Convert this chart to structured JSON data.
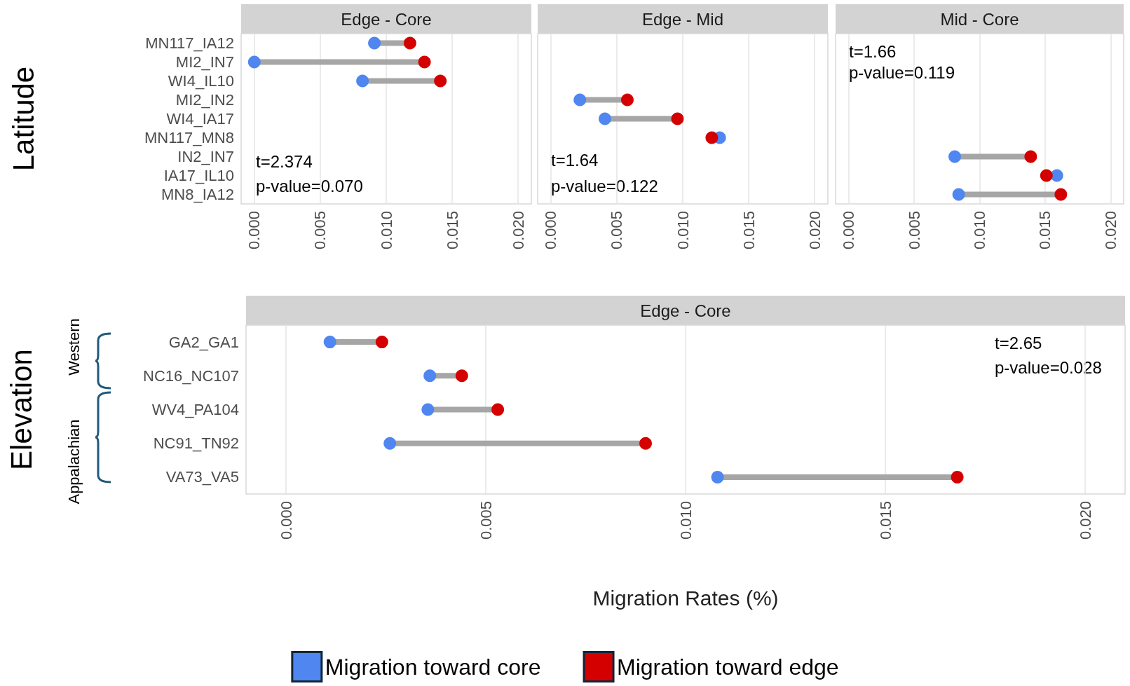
{
  "chart_data": [
    {
      "type": "scatter",
      "orientation": "horizontal",
      "title": "Edge - Core",
      "ylabel": "Latitude",
      "categories": [
        "MN117_IA12",
        "MI2_IN7",
        "WI4_IL10",
        "MI2_IN2",
        "WI4_IA17",
        "MN117_MN8",
        "IN2_IN7",
        "IA17_IL10",
        "MN8_IA12"
      ],
      "series": [
        {
          "color": "#4f86f0",
          "values": [
            0.0091,
            0.0,
            0.0082,
            null,
            null,
            null,
            null,
            null,
            null
          ]
        },
        {
          "color": "#d40000",
          "values": [
            0.0118,
            0.0129,
            0.0141,
            null,
            null,
            null,
            null,
            null,
            null
          ]
        }
      ],
      "xlim": [
        -0.001,
        0.021
      ],
      "xticks": [
        {
          "value": 0,
          "label": "0.000"
        },
        {
          "value": 0.005,
          "label": "0.005"
        },
        {
          "value": 0.01,
          "label": "0.010"
        },
        {
          "value": 0.015,
          "label": "0.015"
        },
        {
          "value": 0.02,
          "label": "0.020"
        }
      ],
      "grid": "x",
      "marker": "circle",
      "annotations": [
        "t=2.374",
        "p-value=0.070"
      ]
    },
    {
      "type": "scatter",
      "orientation": "horizontal",
      "title": "Edge - Mid",
      "categories": [
        null,
        null,
        null,
        null,
        null,
        null,
        null,
        null,
        null
      ],
      "series": [
        {
          "color": "#4f86f0",
          "values": [
            null,
            null,
            null,
            0.0022,
            0.0041,
            0.0128,
            null,
            null,
            null
          ]
        },
        {
          "color": "#d40000",
          "values": [
            null,
            null,
            null,
            0.0058,
            0.0096,
            0.0122,
            null,
            null,
            null
          ]
        }
      ],
      "xlim": [
        -0.001,
        0.021
      ],
      "xticks": [
        {
          "value": 0,
          "label": "0.000"
        },
        {
          "value": 0.005,
          "label": "0.005"
        },
        {
          "value": 0.01,
          "label": "0.010"
        },
        {
          "value": 0.015,
          "label": "0.015"
        },
        {
          "value": 0.02,
          "label": "0.020"
        }
      ],
      "grid": "x",
      "marker": "circle",
      "tick_labels": "x",
      "annotations": [
        "t=1.64",
        "p-value=0.122"
      ]
    },
    {
      "type": "scatter",
      "orientation": "horizontal",
      "title": "Mid - Core",
      "categories": [
        null,
        null,
        null,
        null,
        null,
        null,
        null,
        null,
        null
      ],
      "series": [
        {
          "color": "#4f86f0",
          "values": [
            null,
            null,
            null,
            null,
            null,
            null,
            0.0081,
            0.0159,
            0.0084
          ]
        },
        {
          "color": "#d40000",
          "values": [
            null,
            null,
            null,
            null,
            null,
            null,
            0.0139,
            0.0151,
            0.0162
          ]
        }
      ],
      "xlim": [
        -0.001,
        0.021
      ],
      "xticks": [
        {
          "value": 0,
          "label": "0.000"
        },
        {
          "value": 0.005,
          "label": "0.005"
        },
        {
          "value": 0.01,
          "label": "0.010"
        },
        {
          "value": 0.015,
          "label": "0.015"
        },
        {
          "value": 0.02,
          "label": "0.020"
        }
      ],
      "grid": "x",
      "marker": "circle",
      "tick_labels": "x",
      "annotations": [
        "t=1.66",
        "p-value=0.119"
      ]
    },
    {
      "type": "scatter",
      "orientation": "horizontal",
      "title": "Edge - Core",
      "ylabel": "Elevation",
      "xlabel": "Migration Rates (%)",
      "categories": [
        "GA2_GA1",
        "NC16_NC107",
        "WV4_PA104",
        "NC91_TN92",
        "VA73_VA5"
      ],
      "series": [
        {
          "name": "Migration toward core",
          "color": "#4f86f0",
          "values": [
            0.0011,
            0.0036,
            0.00355,
            0.0026,
            0.0108
          ]
        },
        {
          "name": "Migration toward edge",
          "color": "#d40000",
          "values": [
            0.0024,
            0.0044,
            0.0053,
            0.009,
            0.0168
          ]
        }
      ],
      "xlim": [
        -0.001,
        0.021
      ],
      "xticks": [
        {
          "value": 0,
          "label": "0.000"
        },
        {
          "value": 0.005,
          "label": "0.005"
        },
        {
          "value": 0.01,
          "label": "0.010"
        },
        {
          "value": 0.015,
          "label": "0.015"
        },
        {
          "value": 0.02,
          "label": "0.020"
        }
      ],
      "grid": "x",
      "marker": "circle",
      "legend": "bottom",
      "annotations": [
        "t=2.65",
        "p-value=0.028",
        "Western",
        "Appalachian"
      ]
    }
  ]
}
